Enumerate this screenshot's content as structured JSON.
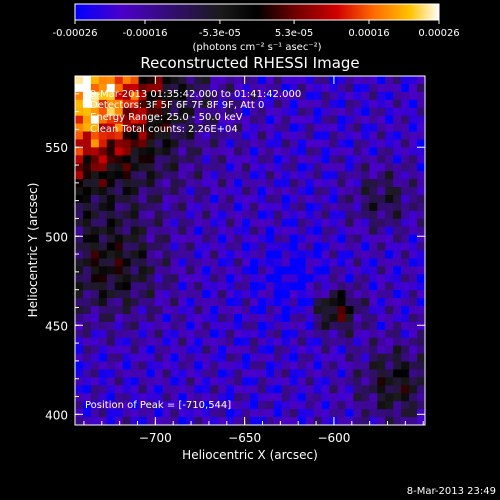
{
  "colorbar": {
    "tick_labels": [
      "-0.00026",
      "-0.00016",
      "-5.3e-05",
      "5.3e-05",
      "0.00016",
      "0.00026"
    ],
    "ticks": [
      -0.00026,
      -0.00016,
      -5.3e-05,
      5.3e-05,
      0.00016,
      0.00026
    ],
    "range": [
      -0.00026,
      0.00026
    ],
    "units_label": "(photons cm⁻² s⁻¹ asec⁻²)",
    "colors": [
      "#0000ff",
      "#4b00c8",
      "#1a1a1a",
      "#000000",
      "#6b0000",
      "#d00000",
      "#ff6a00",
      "#ffc200",
      "#ffffff"
    ]
  },
  "chart_data": {
    "type": "heatmap",
    "title": "Reconstructed RHESSI Image",
    "xlabel": "Heliocentric X (arcsec)",
    "ylabel": "Heliocentric Y (arcsec)",
    "xlim": [
      -745,
      -549
    ],
    "ylim": [
      394,
      590
    ],
    "x_ticks": [
      -700,
      -650,
      -600
    ],
    "x_tick_labels": [
      "−700",
      "−650",
      "−600"
    ],
    "y_ticks": [
      400,
      450,
      500,
      550
    ],
    "y_tick_labels": [
      "400",
      "450",
      "500",
      "550"
    ],
    "annotations": [
      "9-Mar-2013 01:35:42.000 to 01:41:42.000",
      "Detectors: 3F 5F 6F 7F 8F 9F, Att 0",
      "Energy Range: 25.0 - 50.0 keV",
      "Clean    Total counts: 2.26E+04"
    ],
    "peak_label": "Position of Peak = [-710,544]",
    "peak_position": [
      -710,
      544
    ]
  },
  "footer": {
    "timestamp": "8-Mar-2013 23:49"
  }
}
